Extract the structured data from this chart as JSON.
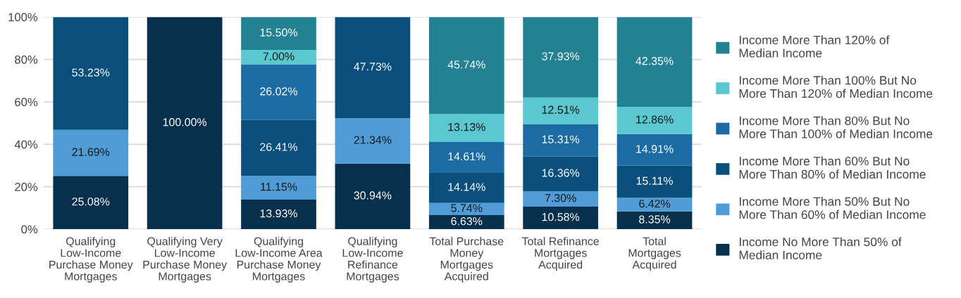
{
  "chart_data": {
    "type": "bar",
    "stacked": true,
    "categories": [
      "Qualifying\nLow-Income\nPurchase Money\nMortgages",
      "Qualifying Very\nLow-Income\nPurchase Money\nMortgages",
      "Qualifying\nLow-Income Area\nPurchase Money\nMortgages",
      "Qualifying\nLow-Income\nRefinance\nMortgages",
      "Total Purchase\nMoney\nMortgages\nAcquired",
      "Total Refinance\nMortgages\nAcquired",
      "Total\nMortgages\nAcquired"
    ],
    "series": [
      {
        "name": "Income No More Than 50% of\nMedian Income",
        "color": "#082f4b",
        "values": [
          25.08,
          100.0,
          13.93,
          30.94,
          6.63,
          10.58,
          8.35
        ],
        "value_labels": [
          "25.08%",
          "100.00%",
          "13.93%",
          "30.94%",
          "6.63%",
          "10.58%",
          "8.35%"
        ]
      },
      {
        "name": "Income More Than 50% But No\nMore Than 60% of Median Income",
        "color": "#4f9cd6",
        "values": [
          21.69,
          null,
          11.15,
          21.34,
          5.74,
          7.3,
          6.42
        ],
        "value_labels": [
          "21.69%",
          null,
          "11.15%",
          "21.34%",
          "5.74%",
          "7.30%",
          "6.42%"
        ]
      },
      {
        "name": "Income More Than 60% But No\nMore Than 80% of Median Income",
        "color": "#0a4f7c",
        "values": [
          53.23,
          null,
          26.41,
          47.73,
          14.14,
          16.36,
          15.11
        ],
        "value_labels": [
          "53.23%",
          null,
          "26.41%",
          "47.73%",
          "14.14%",
          "16.36%",
          "15.11%"
        ]
      },
      {
        "name": "Income More Than 80% But No\nMore Than 100% of Median Income",
        "color": "#1c6ca3",
        "values": [
          null,
          null,
          26.02,
          null,
          14.61,
          15.31,
          14.91
        ],
        "value_labels": [
          null,
          null,
          "26.02%",
          null,
          "14.61%",
          "15.31%",
          "14.91%"
        ]
      },
      {
        "name": "Income More Than 100% But No\nMore Than 120% of Median Income",
        "color": "#5bc7cf",
        "values": [
          null,
          null,
          7.0,
          null,
          13.13,
          12.51,
          12.86
        ],
        "value_labels": [
          null,
          null,
          "7.00%",
          null,
          "13.13%",
          "12.51%",
          "12.86%"
        ]
      },
      {
        "name": "Income More Than 120% of\nMedian Income",
        "color": "#238193",
        "values": [
          null,
          null,
          15.5,
          null,
          45.74,
          37.93,
          42.35
        ],
        "value_labels": [
          null,
          null,
          "15.50%",
          null,
          "45.74%",
          "37.93%",
          "42.35%"
        ]
      }
    ],
    "ylim": [
      0,
      100
    ],
    "yticks": [
      {
        "value": 0,
        "label": "0%"
      },
      {
        "value": 20,
        "label": "20%"
      },
      {
        "value": 40,
        "label": "40%"
      },
      {
        "value": 60,
        "label": "60%"
      },
      {
        "value": 80,
        "label": "80%"
      },
      {
        "value": 100,
        "label": "100%"
      }
    ],
    "grid": "y",
    "legend": "right"
  }
}
